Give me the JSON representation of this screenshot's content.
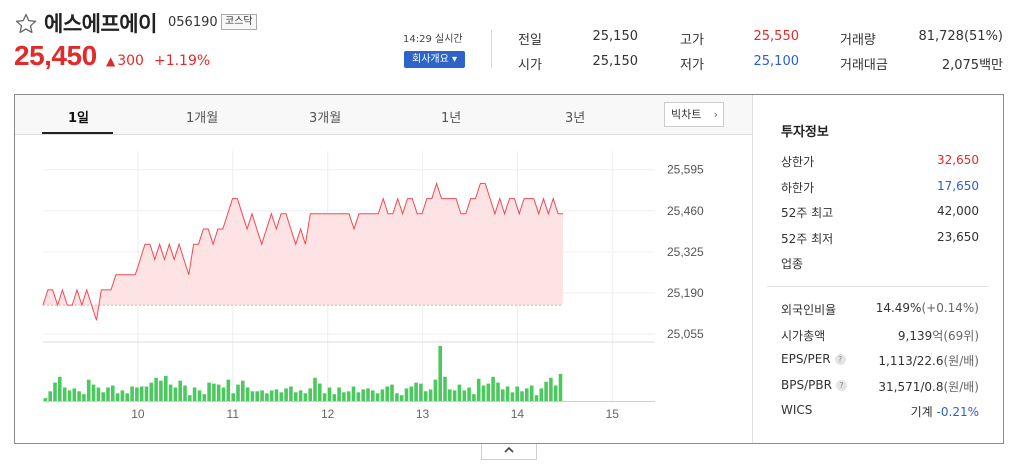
{
  "stock": {
    "name": "에스에프에이",
    "code": "056190",
    "market": "코스닥",
    "price": "25,450",
    "change_arrow": "▲",
    "change": "300",
    "change_pct": "+1.19%",
    "realtime": "14:29 실시간",
    "company_button": "회사개요 ▾"
  },
  "summary": [
    {
      "label": "전일",
      "value": "25,150",
      "tone": "normal"
    },
    {
      "label": "고가",
      "value": "25,550",
      "tone": "up"
    },
    {
      "label": "거래량",
      "value": "81,728(51%)",
      "tone": "normal"
    },
    {
      "label": "시가",
      "value": "25,150",
      "tone": "normal"
    },
    {
      "label": "저가",
      "value": "25,100",
      "tone": "down"
    },
    {
      "label": "거래대금",
      "value": "2,075백만",
      "tone": "normal"
    }
  ],
  "tabs": [
    "1일",
    "1개월",
    "3개월",
    "1년",
    "3년"
  ],
  "active_tab": 0,
  "bigchart_label": "빅차트",
  "chart_data": {
    "type": "area",
    "ylim": [
      25055,
      25640
    ],
    "yticks": [
      "25,595",
      "25,460",
      "25,325",
      "25,190",
      "25,055"
    ],
    "ytick_values": [
      25595,
      25460,
      25325,
      25190,
      25055
    ],
    "xticks": [
      "10",
      "11",
      "12",
      "13",
      "14",
      "15"
    ],
    "x_range": [
      9.0,
      15.45
    ],
    "prev_close": 25150,
    "price_line": [
      25150,
      25200,
      25200,
      25150,
      25200,
      25150,
      25150,
      25200,
      25150,
      25200,
      25150,
      25100,
      25200,
      25200,
      25200,
      25250,
      25250,
      25250,
      25250,
      25250,
      25300,
      25350,
      25350,
      25300,
      25350,
      25300,
      25350,
      25300,
      25350,
      25300,
      25250,
      25350,
      25350,
      25400,
      25400,
      25350,
      25400,
      25400,
      25450,
      25500,
      25500,
      25450,
      25400,
      25450,
      25400,
      25350,
      25400,
      25450,
      25400,
      25450,
      25450,
      25400,
      25350,
      25400,
      25350,
      25450,
      25450,
      25450,
      25450,
      25450,
      25450,
      25450,
      25450,
      25450,
      25400,
      25450,
      25450,
      25450,
      25450,
      25450,
      25500,
      25450,
      25450,
      25500,
      25450,
      25500,
      25500,
      25450,
      25450,
      25500,
      25500,
      25550,
      25500,
      25500,
      25500,
      25500,
      25450,
      25450,
      25500,
      25500,
      25550,
      25550,
      25500,
      25450,
      25500,
      25450,
      25500,
      25500,
      25450,
      25500,
      25500,
      25500,
      25450,
      25500,
      25450,
      25500,
      25450,
      25450
    ],
    "volume": [
      3,
      10,
      19,
      25,
      14,
      11,
      13,
      10,
      7,
      22,
      17,
      14,
      9,
      14,
      16,
      8,
      11,
      8,
      15,
      14,
      15,
      15,
      19,
      24,
      21,
      26,
      17,
      14,
      21,
      16,
      6,
      14,
      11,
      7,
      19,
      18,
      17,
      14,
      22,
      8,
      17,
      21,
      14,
      10,
      10,
      11,
      8,
      11,
      12,
      9,
      13,
      15,
      9,
      11,
      8,
      13,
      24,
      18,
      8,
      14,
      7,
      14,
      9,
      10,
      15,
      9,
      12,
      13,
      11,
      8,
      12,
      15,
      17,
      8,
      6,
      13,
      15,
      19,
      18,
      10,
      12,
      22,
      57,
      25,
      12,
      11,
      17,
      11,
      14,
      7,
      23,
      16,
      18,
      25,
      19,
      12,
      15,
      9,
      15,
      10,
      13,
      16,
      6,
      13,
      20,
      24,
      16,
      28
    ],
    "volume_max": 60
  },
  "info": {
    "title": "투자정보",
    "rows": [
      {
        "label": "상한가",
        "value": "32,650",
        "sub": "",
        "tone": "up",
        "q": false
      },
      {
        "label": "하한가",
        "value": "17,650",
        "sub": "",
        "tone": "down",
        "q": false
      },
      {
        "label": "52주 최고",
        "value": "42,000",
        "sub": "",
        "tone": "normal",
        "q": false
      },
      {
        "label": "52주 최저",
        "value": "23,650",
        "sub": "",
        "tone": "normal",
        "q": false
      },
      {
        "label": "업종",
        "value": "",
        "sub": "",
        "tone": "normal",
        "q": false
      }
    ],
    "rows2": [
      {
        "label": "외국인비율",
        "value": "14.49%",
        "sub": "(+0.14%)",
        "tone": "normal",
        "q": false
      },
      {
        "label": "시가총액",
        "value": "9,139",
        "sub": "억(69위)",
        "tone": "normal",
        "q": false
      },
      {
        "label": "EPS/PER",
        "value": "1,113/22.6",
        "sub": "(원/배)",
        "tone": "normal",
        "q": true
      },
      {
        "label": "BPS/PBR",
        "value": "31,571/0.8",
        "sub": "(원/배)",
        "tone": "normal",
        "q": true
      },
      {
        "label": "WICS",
        "value": "기계",
        "sub": "-0.21%",
        "tone": "wics",
        "q": false
      }
    ]
  },
  "colors": {
    "up": "#e12b2b",
    "down": "#2a5fd0",
    "line": "#f04a56",
    "area": "#fde3e4",
    "volume": "#4cc95e",
    "button": "#2c64c9"
  },
  "collapse_icon": "chevron-up-icon"
}
